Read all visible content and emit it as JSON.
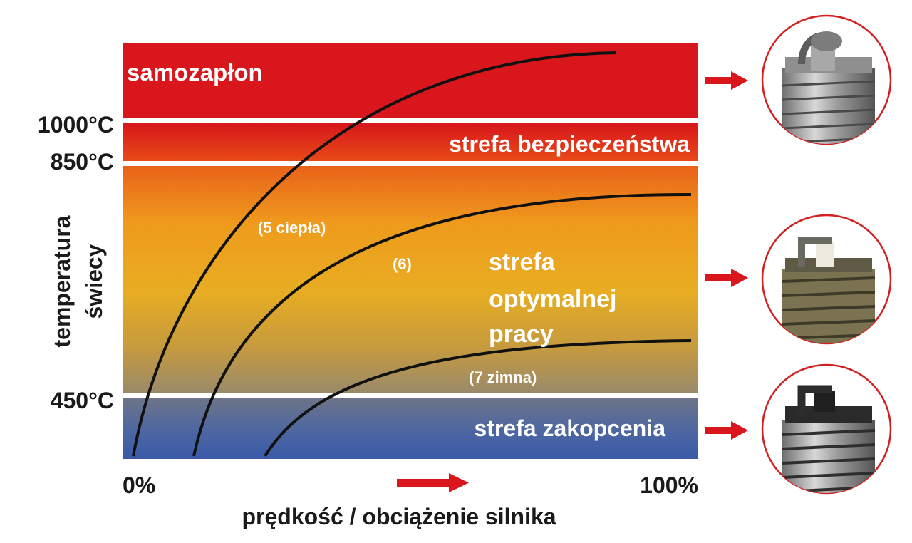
{
  "zones": {
    "auto_ignition": "samozapłon",
    "safety": "strefa bezpieczeństwa",
    "optimal": [
      "strefa",
      "optymalnej",
      "pracy"
    ],
    "fouling": "strefa zakopcenia"
  },
  "temperatures": {
    "t1000": "1000°C",
    "t850": "850°C",
    "t450": "450°C"
  },
  "y_axis_label": [
    "temperatura",
    "świecy"
  ],
  "x_axis": {
    "start": "0%",
    "end": "100%",
    "label": "prędkość / obciążenie silnika"
  },
  "curves": {
    "hot": "(5 ciepła)",
    "mid": "(6)",
    "cold": "(7 zimna)"
  },
  "plugs": [
    {
      "condition": "overheated"
    },
    {
      "condition": "normal"
    },
    {
      "condition": "sooted"
    }
  ],
  "colors": {
    "red": "#d8161b",
    "orange": "#ef8a1a",
    "amber": "#eeaf1c",
    "blue": "#3e5fa4",
    "arrow": "#d9161c",
    "curve": "#111111"
  }
}
